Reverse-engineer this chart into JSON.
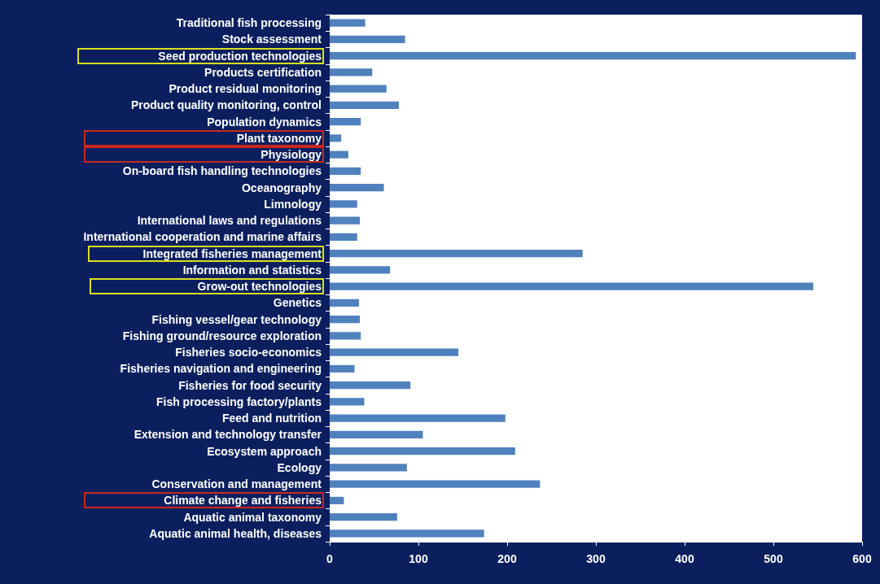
{
  "chart_data": {
    "type": "bar",
    "orientation": "horizontal",
    "categories": [
      "Traditional fish processing",
      "Stock assessment",
      "Seed production technologies",
      "Products certification",
      "Product residual monitoring",
      "Product quality monitoring, control",
      "Population dynamics",
      "Plant taxonomy",
      "Physiology",
      "On-board fish handling technologies",
      "Oceanography",
      "Limnology",
      "International laws and regulations",
      "International cooperation and marine affairs",
      "Integrated fisheries management",
      "Information and statistics",
      "Grow-out technologies",
      "Genetics",
      "Fishing vessel/gear technology",
      "Fishing ground/resource exploration",
      "Fisheries socio-economics",
      "Fisheries navigation and engineering",
      "Fisheries for food security",
      "Fish processing factory/plants",
      "Feed and nutrition",
      "Extension and technology transfer",
      "Ecosystem approach",
      "Ecology",
      "Conservation and management",
      "Climate change and fisheries",
      "Aquatic animal taxonomy",
      "Aquatic animal health, diseases"
    ],
    "values": [
      40,
      85,
      593,
      48,
      64,
      78,
      35,
      13,
      21,
      35,
      61,
      31,
      34,
      31,
      285,
      68,
      545,
      33,
      34,
      35,
      145,
      28,
      91,
      39,
      198,
      105,
      209,
      87,
      237,
      16,
      76,
      174
    ],
    "color": "#4f81bd",
    "xlim": [
      0,
      600
    ],
    "xticks": [
      0,
      100,
      200,
      300,
      400,
      500,
      600
    ],
    "grid": false
  }
}
